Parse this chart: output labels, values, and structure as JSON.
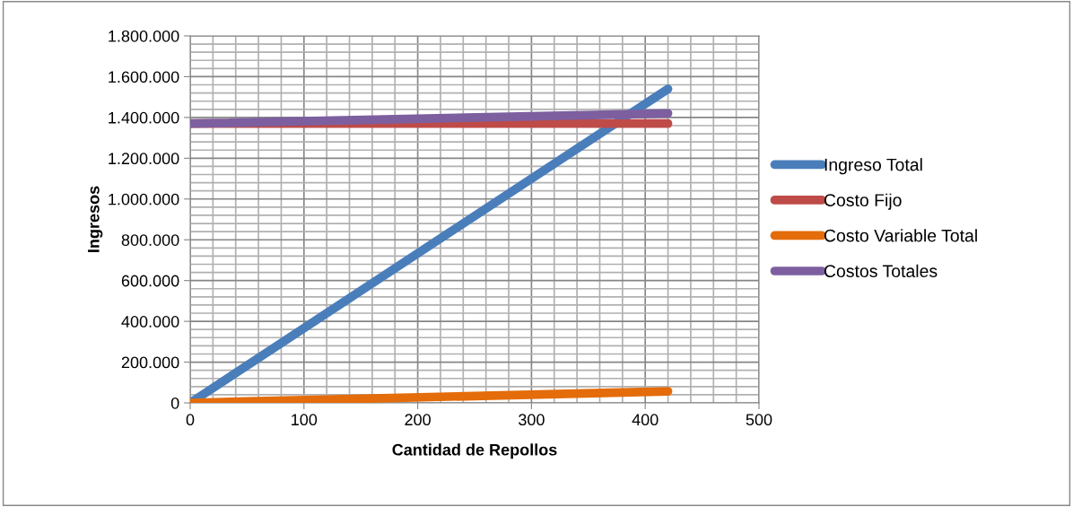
{
  "chart_data": {
    "type": "line",
    "xlabel": "Cantidad de Repollos",
    "ylabel": "Ingresos",
    "x": [
      0,
      420
    ],
    "series": [
      {
        "name": "Ingreso Total",
        "color": "#4a7ebb",
        "values": [
          0,
          1540000
        ]
      },
      {
        "name": "Costo Fijo",
        "color": "#be4b48",
        "values": [
          1370000,
          1370000
        ]
      },
      {
        "name": "Costo Variable Total",
        "color": "#e46c0a",
        "values": [
          0,
          57000
        ]
      },
      {
        "name": "Costos Totales",
        "color": "#7d5fa0",
        "values": [
          1370000,
          1420000
        ]
      }
    ],
    "xlim": [
      0,
      500
    ],
    "xticks": [
      0,
      100,
      200,
      300,
      400,
      500
    ],
    "ylim": [
      0,
      1800000
    ],
    "yticks": [
      {
        "value": 0,
        "label": "0"
      },
      {
        "value": 200000,
        "label": "200.000"
      },
      {
        "value": 400000,
        "label": "400.000"
      },
      {
        "value": 600000,
        "label": "600.000"
      },
      {
        "value": 800000,
        "label": "800.000"
      },
      {
        "value": 1000000,
        "label": "1.000.000"
      },
      {
        "value": 1200000,
        "label": "1.200.000"
      },
      {
        "value": 1400000,
        "label": "1.400.000"
      },
      {
        "value": 1600000,
        "label": "1.600.000"
      },
      {
        "value": 1800000,
        "label": "1.800.000"
      }
    ],
    "grid": true,
    "legend": "right",
    "marker": "none",
    "line_style": "solid"
  }
}
